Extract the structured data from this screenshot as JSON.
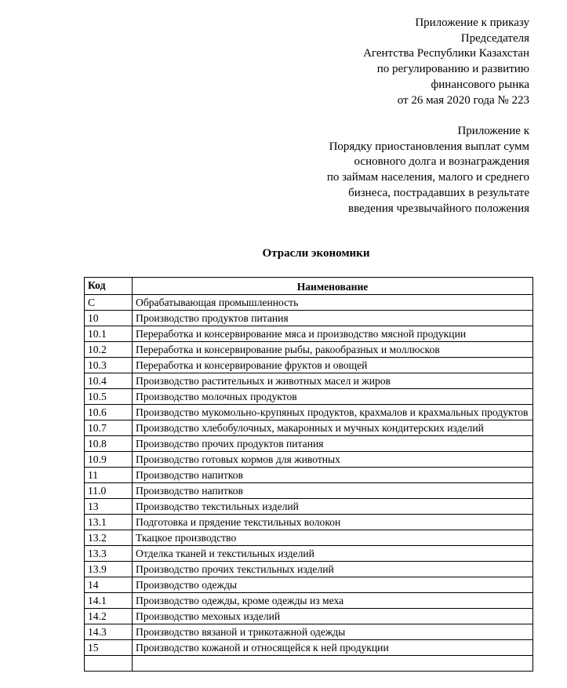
{
  "header_block_1": [
    "Приложение к приказу",
    "Председателя",
    "Агентства Республики Казахстан",
    "по регулированию и развитию",
    "финансового рынка",
    "от 26 мая 2020 года № 223"
  ],
  "header_block_2": [
    "Приложение к",
    "Порядку приостановления выплат сумм",
    "основного долга и вознаграждения",
    "по займам населения, малого и среднего",
    "бизнеса, пострадавших в результате",
    "введения чрезвычайного положения"
  ],
  "title": "Отрасли экономики",
  "table": {
    "headers": {
      "code": "Код",
      "name": "Наименование"
    },
    "rows": [
      {
        "code": "C",
        "name": "Обрабатывающая промышленность"
      },
      {
        "code": "10",
        "name": "Производство продуктов питания"
      },
      {
        "code": "10.1",
        "name": "Переработка и консервирование мяса и производство мясной продукции"
      },
      {
        "code": "10.2",
        "name": "Переработка и консервирование рыбы, ракообразных и моллюсков"
      },
      {
        "code": "10.3",
        "name": "Переработка и консервирование фруктов и овощей"
      },
      {
        "code": "10.4",
        "name": "Производство растительных и животных масел и жиров"
      },
      {
        "code": "10.5",
        "name": "Производство молочных продуктов"
      },
      {
        "code": "10.6",
        "name": "Производство  мукомольно-крупяных продуктов, крахмалов и крахмальных продуктов"
      },
      {
        "code": "10.7",
        "name": "Производство хлебобулочных, макаронных  и мучных кондитерских изделий"
      },
      {
        "code": "10.8",
        "name": "Производство прочих продуктов питания"
      },
      {
        "code": "10.9",
        "name": "Производство готовых кормов для животных"
      },
      {
        "code": "11",
        "name": "Производство напитков"
      },
      {
        "code": "11.0",
        "name": "Производство напитков"
      },
      {
        "code": "13",
        "name": "Производство текстильных изделий"
      },
      {
        "code": "13.1",
        "name": "Подготовка и прядение текстильных волокон"
      },
      {
        "code": "13.2",
        "name": "Ткацкое производство"
      },
      {
        "code": "13.3",
        "name": "Отделка тканей и текстильных изделий"
      },
      {
        "code": "13.9",
        "name": "Производство прочих текстильных изделий"
      },
      {
        "code": "14",
        "name": "Производство одежды"
      },
      {
        "code": "14.1",
        "name": "Производство одежды, кроме одежды из меха"
      },
      {
        "code": "14.2",
        "name": "Производство меховых изделий"
      },
      {
        "code": "14.3",
        "name": "Производство вязаной и трикотажной одежды"
      },
      {
        "code": "15",
        "name": "Производство кожаной и относящейся к ней продукции"
      }
    ]
  }
}
